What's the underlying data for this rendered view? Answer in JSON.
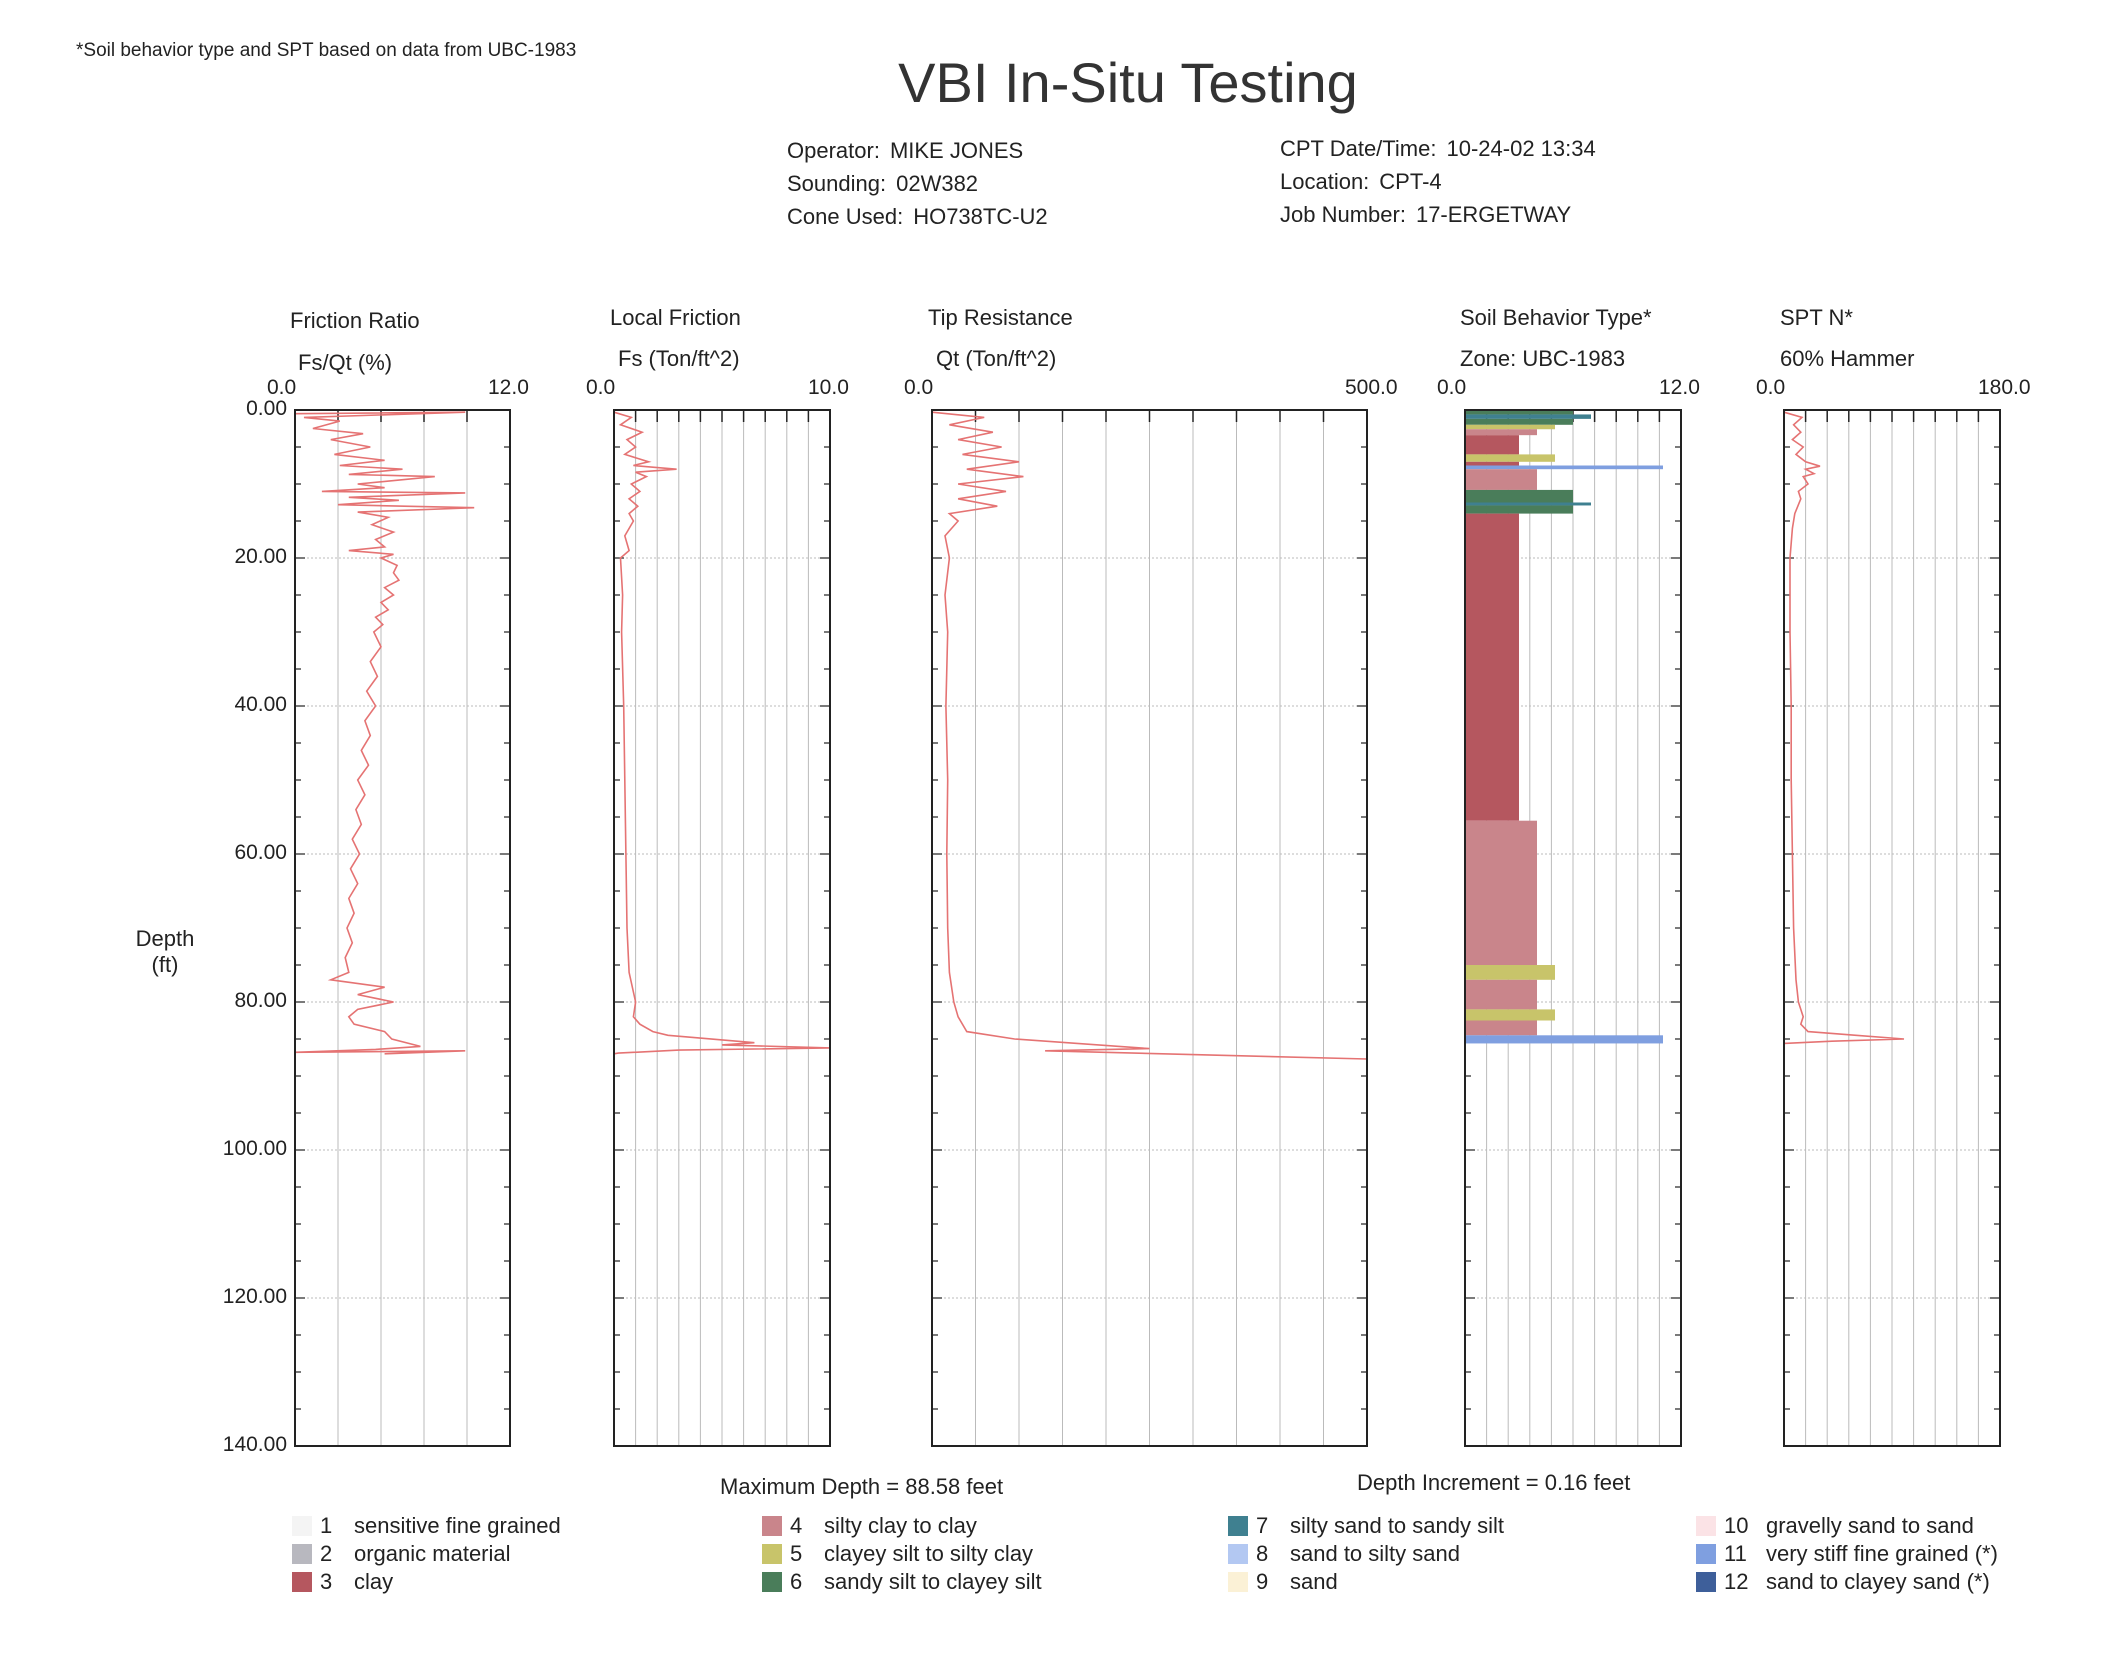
{
  "note": "*Soil behavior type and SPT based on data from UBC-1983",
  "title": "VBI In-Situ Testing",
  "meta_left": [
    {
      "label": "Operator:",
      "value": "MIKE JONES"
    },
    {
      "label": "Sounding:",
      "value": "02W382"
    },
    {
      "label": "Cone Used:",
      "value": "HO738TC-U2"
    }
  ],
  "meta_right": [
    {
      "label": "CPT Date/Time:",
      "value": "10-24-02 13:34"
    },
    {
      "label": "Location:",
      "value": "CPT-4"
    },
    {
      "label": "Job Number:",
      "value": "17-ERGETWAY"
    }
  ],
  "depth_axis": {
    "label_line1": "Depth",
    "label_line2": "(ft)",
    "ticks": [
      "0.00",
      "20.00",
      "40.00",
      "60.00",
      "80.00",
      "100.00",
      "120.00",
      "140.00"
    ]
  },
  "footer": {
    "max_depth": "Maximum Depth = 88.58 feet",
    "depth_increment": "Depth Increment = 0.16 feet"
  },
  "colors": {
    "trace": "#e57373",
    "frame": "#222222",
    "grid": "#bbbbbb",
    "soil_3": "#b5575f",
    "soil_4": "#c9858b",
    "soil_5": "#c8c46a",
    "soil_6": "#4a7d5a",
    "soil_7": "#3f8090",
    "soil_11": "#7f9fe0"
  },
  "legend": [
    {
      "num": "1",
      "text": "sensitive fine grained",
      "color": "#f4f4f4"
    },
    {
      "num": "2",
      "text": "organic material",
      "color": "#b8b8bf"
    },
    {
      "num": "3",
      "text": "clay",
      "color": "#b5575f"
    },
    {
      "num": "4",
      "text": "silty clay to clay",
      "color": "#c9858b"
    },
    {
      "num": "5",
      "text": "clayey silt to silty clay",
      "color": "#c8c46a"
    },
    {
      "num": "6",
      "text": "sandy silt to clayey silt",
      "color": "#4a7d5a"
    },
    {
      "num": "7",
      "text": "silty sand to sandy silt",
      "color": "#3f8090"
    },
    {
      "num": "8",
      "text": "sand to silty sand",
      "color": "#b3c8f2"
    },
    {
      "num": "9",
      "text": "sand",
      "color": "#fbf1d6"
    },
    {
      "num": "10",
      "text": "gravelly sand to sand",
      "color": "#fbe3e6"
    },
    {
      "num": "11",
      "text": "very stiff fine grained (*)",
      "color": "#7f9fe0"
    },
    {
      "num": "12",
      "text": "sand to clayey sand (*)",
      "color": "#3e5f9a"
    }
  ],
  "chart_data": [
    {
      "type": "line",
      "title": "Friction Ratio",
      "xlabel": "Fs/Qt (%)",
      "xlim": [
        0,
        12
      ],
      "xlim_labels": [
        "0.0",
        "12.0"
      ],
      "ylim": [
        0,
        140
      ],
      "y_inverted": true,
      "ylabel": "Depth (ft)",
      "points": [
        [
          0,
          0.5
        ],
        [
          9.5,
          0.3
        ],
        [
          0.5,
          1
        ],
        [
          2.5,
          1.5
        ],
        [
          1,
          2.5
        ],
        [
          3.8,
          3.2
        ],
        [
          2,
          4
        ],
        [
          4.2,
          5
        ],
        [
          2.2,
          6
        ],
        [
          5,
          6.8
        ],
        [
          2.5,
          7.5
        ],
        [
          6,
          8
        ],
        [
          3,
          8.7
        ],
        [
          7.8,
          9
        ],
        [
          3.5,
          10
        ],
        [
          5,
          10.5
        ],
        [
          1.5,
          11
        ],
        [
          9.5,
          11.2
        ],
        [
          3,
          11.8
        ],
        [
          5.8,
          12.2
        ],
        [
          2.4,
          12.8
        ],
        [
          10,
          13.2
        ],
        [
          3.5,
          13.8
        ],
        [
          5.2,
          14.5
        ],
        [
          4.3,
          15.5
        ],
        [
          5.5,
          16.5
        ],
        [
          4.5,
          17.5
        ],
        [
          5,
          18.5
        ],
        [
          3,
          19
        ],
        [
          5.5,
          19.5
        ],
        [
          4.8,
          20
        ],
        [
          5.7,
          21
        ],
        [
          5.5,
          22
        ],
        [
          5.8,
          23
        ],
        [
          5,
          24
        ],
        [
          5.5,
          25
        ],
        [
          4.8,
          26
        ],
        [
          5.2,
          27
        ],
        [
          4.5,
          28
        ],
        [
          4.9,
          29
        ],
        [
          4.4,
          30
        ],
        [
          4.8,
          32
        ],
        [
          4.2,
          34
        ],
        [
          4.6,
          36
        ],
        [
          4,
          38
        ],
        [
          4.5,
          40
        ],
        [
          3.9,
          42
        ],
        [
          4.2,
          44
        ],
        [
          3.7,
          46
        ],
        [
          4.1,
          48
        ],
        [
          3.5,
          50
        ],
        [
          3.9,
          52
        ],
        [
          3.4,
          54
        ],
        [
          3.7,
          56
        ],
        [
          3.2,
          58
        ],
        [
          3.6,
          60
        ],
        [
          3.1,
          62
        ],
        [
          3.5,
          64
        ],
        [
          3,
          66
        ],
        [
          3.3,
          68
        ],
        [
          2.9,
          70
        ],
        [
          3.2,
          72
        ],
        [
          2.8,
          74
        ],
        [
          3,
          76
        ],
        [
          2,
          77
        ],
        [
          5,
          78
        ],
        [
          3.5,
          79
        ],
        [
          5.5,
          80
        ],
        [
          3.5,
          81
        ],
        [
          3,
          82
        ],
        [
          3.3,
          83
        ],
        [
          5,
          84
        ],
        [
          5.4,
          85
        ],
        [
          7,
          86
        ],
        [
          4.5,
          86.4
        ],
        [
          0,
          86.8
        ],
        [
          9.5,
          86.6
        ],
        [
          5,
          87
        ]
      ]
    },
    {
      "type": "line",
      "title": "Local Friction",
      "xlabel": "Fs (Ton/ft^2)",
      "xlim": [
        0,
        10
      ],
      "xlim_labels": [
        "0.0",
        "10.0"
      ],
      "ylim": [
        0,
        140
      ],
      "y_inverted": true,
      "points": [
        [
          0,
          0.3
        ],
        [
          0.8,
          1
        ],
        [
          0.3,
          2
        ],
        [
          1.3,
          3
        ],
        [
          0.6,
          4
        ],
        [
          1,
          5
        ],
        [
          0.5,
          6
        ],
        [
          1.6,
          7
        ],
        [
          0.9,
          7.5
        ],
        [
          2.9,
          8
        ],
        [
          1,
          8.4
        ],
        [
          1.5,
          9
        ],
        [
          0.8,
          10
        ],
        [
          1.2,
          11
        ],
        [
          0.7,
          12
        ],
        [
          1.1,
          13
        ],
        [
          0.7,
          14
        ],
        [
          0.9,
          15
        ],
        [
          0.5,
          17
        ],
        [
          0.7,
          19
        ],
        [
          0.3,
          20
        ],
        [
          0.4,
          25
        ],
        [
          0.35,
          30
        ],
        [
          0.45,
          40
        ],
        [
          0.5,
          50
        ],
        [
          0.55,
          60
        ],
        [
          0.6,
          70
        ],
        [
          0.7,
          76
        ],
        [
          1,
          80
        ],
        [
          0.9,
          82
        ],
        [
          1.2,
          83
        ],
        [
          1.8,
          84
        ],
        [
          2.5,
          84.5
        ],
        [
          6.5,
          85.5
        ],
        [
          5,
          85.8
        ],
        [
          10,
          86.2
        ],
        [
          3,
          86.5
        ],
        [
          0.2,
          86.9
        ],
        [
          0,
          87
        ]
      ]
    },
    {
      "type": "line",
      "title": "Tip Resistance",
      "xlabel": "Qt (Ton/ft^2)",
      "xlim": [
        0,
        500
      ],
      "xlim_labels": [
        "0.0",
        "500.0"
      ],
      "ylim": [
        0,
        140
      ],
      "y_inverted": true,
      "points": [
        [
          0,
          0.3
        ],
        [
          60,
          1
        ],
        [
          20,
          2
        ],
        [
          70,
          3
        ],
        [
          30,
          4
        ],
        [
          80,
          5
        ],
        [
          35,
          6
        ],
        [
          100,
          7
        ],
        [
          40,
          8
        ],
        [
          105,
          9
        ],
        [
          30,
          10
        ],
        [
          85,
          11
        ],
        [
          30,
          12
        ],
        [
          75,
          13
        ],
        [
          20,
          14
        ],
        [
          30,
          15
        ],
        [
          15,
          17
        ],
        [
          20,
          20
        ],
        [
          15,
          25
        ],
        [
          18,
          30
        ],
        [
          16,
          40
        ],
        [
          18,
          50
        ],
        [
          17,
          60
        ],
        [
          18,
          70
        ],
        [
          20,
          76
        ],
        [
          25,
          80
        ],
        [
          30,
          82
        ],
        [
          40,
          84
        ],
        [
          95,
          85
        ],
        [
          250,
          86.3
        ],
        [
          130,
          86.6
        ],
        [
          500,
          87.7
        ]
      ]
    },
    {
      "type": "bar",
      "title": "Soil Behavior Type*",
      "xlabel": "Zone: UBC-1983",
      "xlim": [
        0,
        12
      ],
      "xlim_labels": [
        "0.0",
        "12.0"
      ],
      "ylim": [
        0,
        140
      ],
      "y_inverted": true,
      "layers": [
        {
          "top": 0,
          "bottom": 0.6,
          "zone": 6
        },
        {
          "top": 0.6,
          "bottom": 1.2,
          "zone": 7
        },
        {
          "top": 1.2,
          "bottom": 2,
          "zone": 6
        },
        {
          "top": 2,
          "bottom": 2.6,
          "zone": 5
        },
        {
          "top": 2.6,
          "bottom": 3.4,
          "zone": 4
        },
        {
          "top": 3.4,
          "bottom": 6,
          "zone": 3
        },
        {
          "top": 6,
          "bottom": 7,
          "zone": 5
        },
        {
          "top": 7,
          "bottom": 7.5,
          "zone": 3
        },
        {
          "top": 7.5,
          "bottom": 8,
          "zone": 11
        },
        {
          "top": 8,
          "bottom": 10.8,
          "zone": 4
        },
        {
          "top": 10.8,
          "bottom": 12.5,
          "zone": 6
        },
        {
          "top": 12.5,
          "bottom": 12.9,
          "zone": 7
        },
        {
          "top": 12.9,
          "bottom": 14,
          "zone": 6
        },
        {
          "top": 14,
          "bottom": 55.5,
          "zone": 3
        },
        {
          "top": 55.5,
          "bottom": 75,
          "zone": 4
        },
        {
          "top": 75,
          "bottom": 77,
          "zone": 5
        },
        {
          "top": 77,
          "bottom": 81,
          "zone": 4
        },
        {
          "top": 81,
          "bottom": 82.5,
          "zone": 5
        },
        {
          "top": 82.5,
          "bottom": 84.5,
          "zone": 4
        },
        {
          "top": 84.5,
          "bottom": 85.6,
          "zone": 11
        }
      ]
    },
    {
      "type": "line",
      "title": "SPT N*",
      "xlabel": "60% Hammer",
      "xlim": [
        0,
        180
      ],
      "xlim_labels": [
        "0.0",
        "180.0"
      ],
      "ylim": [
        0,
        140
      ],
      "y_inverted": true,
      "points": [
        [
          0,
          0.3
        ],
        [
          15,
          1
        ],
        [
          8,
          2
        ],
        [
          14,
          3
        ],
        [
          7,
          4
        ],
        [
          16,
          5
        ],
        [
          10,
          6
        ],
        [
          18,
          7
        ],
        [
          30,
          7.6
        ],
        [
          18,
          8
        ],
        [
          25,
          8.6
        ],
        [
          16,
          9
        ],
        [
          20,
          10
        ],
        [
          12,
          11
        ],
        [
          14,
          12
        ],
        [
          9,
          14
        ],
        [
          7,
          16
        ],
        [
          5,
          20
        ],
        [
          5,
          30
        ],
        [
          6,
          40
        ],
        [
          6,
          50
        ],
        [
          7,
          60
        ],
        [
          8,
          70
        ],
        [
          10,
          77
        ],
        [
          12,
          80
        ],
        [
          16,
          82
        ],
        [
          14,
          83
        ],
        [
          20,
          84
        ],
        [
          60,
          84.5
        ],
        [
          100,
          85
        ],
        [
          40,
          85.3
        ],
        [
          0,
          85.6
        ]
      ]
    }
  ]
}
